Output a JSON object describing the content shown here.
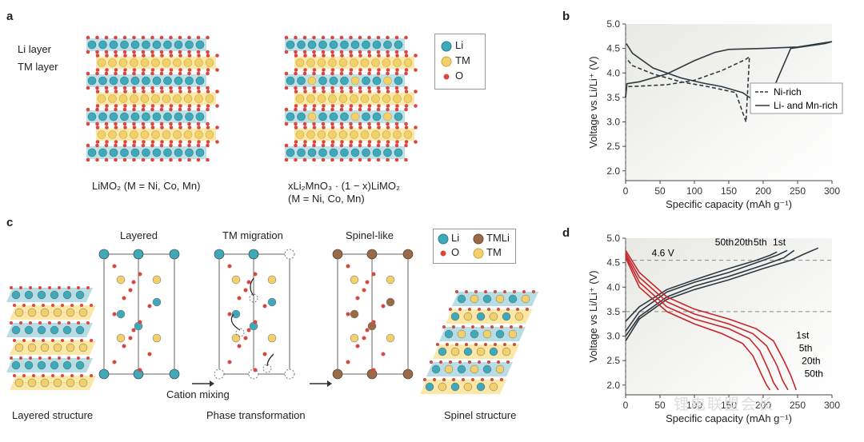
{
  "panels": {
    "a": {
      "label": "a",
      "layer_labels": [
        "Li layer",
        "TM layer"
      ],
      "legend": [
        "Li",
        "TM",
        "O"
      ],
      "caption_left": "LiMO₂ (M = Ni, Co, Mn)",
      "caption_right_1": "xLi₂MnO₃ · (1 − x)LiMO₂",
      "caption_right_2": "(M = Ni, Co, Mn)"
    },
    "b": {
      "label": "b",
      "legend": [
        "Ni-rich",
        "Li- and Mn-rich"
      ]
    },
    "c": {
      "label": "c",
      "titles": [
        "Layered",
        "TM migration",
        "Spinel-like"
      ],
      "legend": [
        "Li",
        "TMLi",
        "O",
        "TM"
      ],
      "arrow_label": "Cation mixing",
      "captions": [
        "Layered structure",
        "Phase transformation",
        "Spinel structure"
      ]
    },
    "d": {
      "label": "d",
      "annotation": "4.6 V",
      "cycle_labels_top": [
        "50th",
        "20th",
        "5th",
        "1st"
      ],
      "cycle_labels_bottom": [
        "1st",
        "5th",
        "20th",
        "50th"
      ]
    }
  },
  "watermark": "锂电联盟会长",
  "colors": {
    "li": "#3fa9b9",
    "tm": "#f2d06b",
    "o": "#d9473f",
    "tmli": "#9a6a47",
    "red_curve": "#c8252a",
    "dark_curve": "#2f3a40"
  },
  "chart_data": [
    {
      "type": "line",
      "xlabel": "Specific capacity (mAh g⁻¹)",
      "ylabel": "Voltage vs Li/Li⁺ (V)",
      "xticks": [
        0,
        50,
        100,
        150,
        200,
        250,
        300
      ],
      "yticks": [
        "2.0",
        "2.5",
        "3.0",
        "3.5",
        "4.0",
        "4.5",
        "5.0"
      ],
      "xlim": [
        0,
        300
      ],
      "ylim": [
        1.8,
        5.0
      ],
      "series": [
        {
          "name": "Ni-rich",
          "style": "dashed",
          "x": [
            0,
            1,
            20,
            60,
            100,
            140,
            160,
            175,
            180,
            175,
            160,
            120,
            80,
            40,
            10,
            1
          ],
          "y": [
            3.5,
            3.72,
            3.73,
            3.76,
            3.85,
            4.05,
            4.18,
            4.28,
            4.33,
            3.0,
            3.6,
            3.72,
            3.82,
            3.98,
            4.15,
            4.3
          ]
        },
        {
          "name": "Li- and Mn-rich",
          "style": "solid",
          "x": [
            0,
            2,
            20,
            60,
            100,
            130,
            150,
            200,
            250,
            300,
            290,
            240,
            200,
            185,
            170,
            140,
            110,
            80,
            40,
            10,
            1
          ],
          "y": [
            3.5,
            3.78,
            3.82,
            3.98,
            4.25,
            4.42,
            4.48,
            4.5,
            4.53,
            4.64,
            4.6,
            4.5,
            3.2,
            3.45,
            3.6,
            3.72,
            3.8,
            3.9,
            4.1,
            4.4,
            4.6
          ]
        }
      ]
    },
    {
      "type": "line",
      "xlabel": "Specific capacity (mAh g⁻¹)",
      "ylabel": "Voltage vs Li/Li⁺ (V)",
      "xticks": [
        0,
        50,
        100,
        150,
        200,
        250,
        300
      ],
      "yticks": [
        "2.0",
        "2.5",
        "3.0",
        "3.5",
        "4.0",
        "4.5",
        "5.0"
      ],
      "xlim": [
        0,
        300
      ],
      "ylim": [
        1.8,
        5.0
      ],
      "hlines": [
        4.55,
        3.5
      ],
      "series": [
        {
          "name": "1st",
          "type": "charge",
          "x": [
            0,
            20,
            60,
            100,
            150,
            200,
            240,
            260,
            280
          ],
          "y": [
            2.9,
            3.35,
            3.75,
            3.95,
            4.15,
            4.38,
            4.55,
            4.68,
            4.8
          ]
        },
        {
          "name": "5th",
          "type": "charge",
          "x": [
            0,
            20,
            60,
            100,
            150,
            200,
            230,
            245
          ],
          "y": [
            3.0,
            3.4,
            3.8,
            4.02,
            4.22,
            4.45,
            4.6,
            4.75
          ]
        },
        {
          "name": "20th",
          "type": "charge",
          "x": [
            0,
            20,
            60,
            100,
            150,
            200,
            220,
            235
          ],
          "y": [
            3.1,
            3.5,
            3.9,
            4.1,
            4.3,
            4.55,
            4.65,
            4.75
          ]
        },
        {
          "name": "50th",
          "type": "charge",
          "x": [
            0,
            20,
            60,
            100,
            150,
            190,
            210,
            220
          ],
          "y": [
            3.3,
            3.6,
            3.95,
            4.15,
            4.38,
            4.55,
            4.65,
            4.72
          ]
        },
        {
          "name": "1st",
          "type": "discharge",
          "x": [
            0,
            20,
            60,
            100,
            150,
            190,
            215,
            230,
            240,
            248
          ],
          "y": [
            4.75,
            4.3,
            3.8,
            3.55,
            3.35,
            3.15,
            2.9,
            2.5,
            2.2,
            1.9
          ]
        },
        {
          "name": "5th",
          "type": "discharge",
          "x": [
            0,
            20,
            60,
            100,
            150,
            185,
            205,
            220,
            228,
            236
          ],
          "y": [
            4.7,
            4.2,
            3.7,
            3.45,
            3.25,
            3.05,
            2.8,
            2.4,
            2.1,
            1.9
          ]
        },
        {
          "name": "20th",
          "type": "discharge",
          "x": [
            0,
            20,
            60,
            100,
            150,
            180,
            195,
            208,
            215,
            222
          ],
          "y": [
            4.65,
            4.1,
            3.6,
            3.35,
            3.15,
            2.95,
            2.7,
            2.3,
            2.05,
            1.9
          ]
        },
        {
          "name": "50th",
          "type": "discharge",
          "x": [
            0,
            20,
            60,
            100,
            140,
            170,
            185,
            198,
            205,
            210
          ],
          "y": [
            4.6,
            4.0,
            3.5,
            3.25,
            3.05,
            2.85,
            2.6,
            2.2,
            2.0,
            1.9
          ]
        }
      ]
    }
  ]
}
